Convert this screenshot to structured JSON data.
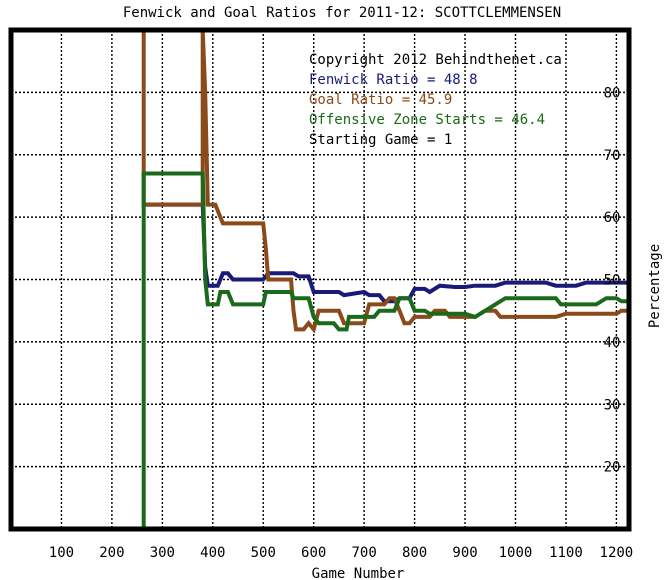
{
  "chart_data": {
    "type": "line",
    "title": "Fenwick and Goal Ratios for 2011-12: SCOTTCLEMMENSEN",
    "xlabel": "Game Number",
    "ylabel": "Percentage",
    "xlim": [
      0,
      1225
    ],
    "ylim": [
      10,
      90
    ],
    "x_ticks": [
      100,
      200,
      300,
      400,
      500,
      600,
      700,
      800,
      900,
      1000,
      1100,
      1200
    ],
    "y_ticks": [
      20,
      30,
      40,
      50,
      60,
      70,
      80
    ],
    "grid": true,
    "y_axis_side": "right",
    "annotations": [
      {
        "text": "Copyright 2012 Behindthenet.ca",
        "color": "#000000"
      },
      {
        "text": "Fenwick Ratio = 48.8",
        "color": "#1a1a7a"
      },
      {
        "text": "Goal Ratio = 45.9",
        "color": "#8b4a1a"
      },
      {
        "text": "Offensive Zone Starts = 46.4",
        "color": "#1a6a1a"
      },
      {
        "text": "Starting Game = 1",
        "color": "#000000"
      }
    ],
    "series": [
      {
        "name": "Fenwick Ratio",
        "color": "#1a1a7a",
        "points": [
          [
            263,
            62
          ],
          [
            380,
            62
          ],
          [
            385,
            52
          ],
          [
            390,
            49
          ],
          [
            405,
            49
          ],
          [
            410,
            49
          ],
          [
            420,
            51
          ],
          [
            430,
            51
          ],
          [
            440,
            50
          ],
          [
            500,
            50
          ],
          [
            510,
            51
          ],
          [
            560,
            51
          ],
          [
            570,
            50.5
          ],
          [
            590,
            50.5
          ],
          [
            600,
            48
          ],
          [
            650,
            48
          ],
          [
            660,
            47.5
          ],
          [
            700,
            48
          ],
          [
            710,
            47.5
          ],
          [
            730,
            47.5
          ],
          [
            740,
            46.5
          ],
          [
            760,
            46.5
          ],
          [
            770,
            47
          ],
          [
            790,
            47
          ],
          [
            800,
            48.5
          ],
          [
            820,
            48.5
          ],
          [
            830,
            48
          ],
          [
            850,
            49
          ],
          [
            880,
            48.8
          ],
          [
            900,
            48.8
          ],
          [
            920,
            49
          ],
          [
            960,
            49
          ],
          [
            980,
            49.5
          ],
          [
            1060,
            49.5
          ],
          [
            1080,
            49
          ],
          [
            1120,
            49
          ],
          [
            1140,
            49.5
          ],
          [
            1225,
            49.5
          ]
        ]
      },
      {
        "name": "Goal Ratio",
        "color": "#8b4a1a",
        "points": [
          [
            263,
            100
          ],
          [
            263,
            90
          ],
          [
            263,
            62
          ],
          [
            380,
            62
          ],
          [
            380,
            90
          ],
          [
            385,
            80
          ],
          [
            390,
            62
          ],
          [
            405,
            62
          ],
          [
            410,
            61
          ],
          [
            420,
            59
          ],
          [
            500,
            59
          ],
          [
            505,
            55
          ],
          [
            510,
            50
          ],
          [
            555,
            50
          ],
          [
            560,
            45
          ],
          [
            565,
            42
          ],
          [
            580,
            42
          ],
          [
            590,
            43
          ],
          [
            600,
            42
          ],
          [
            610,
            45
          ],
          [
            650,
            45
          ],
          [
            660,
            43
          ],
          [
            700,
            43
          ],
          [
            710,
            46
          ],
          [
            740,
            46
          ],
          [
            750,
            47
          ],
          [
            760,
            47
          ],
          [
            770,
            45
          ],
          [
            780,
            43
          ],
          [
            790,
            43
          ],
          [
            800,
            44
          ],
          [
            830,
            44
          ],
          [
            840,
            45
          ],
          [
            860,
            45
          ],
          [
            870,
            44
          ],
          [
            920,
            44
          ],
          [
            940,
            45
          ],
          [
            960,
            45
          ],
          [
            970,
            44
          ],
          [
            1080,
            44
          ],
          [
            1100,
            44.5
          ],
          [
            1200,
            44.5
          ],
          [
            1210,
            45
          ],
          [
            1225,
            45
          ]
        ]
      },
      {
        "name": "Offensive Zone Starts",
        "color": "#1a6a1a",
        "points": [
          [
            263,
            0
          ],
          [
            263,
            67
          ],
          [
            380,
            67
          ],
          [
            385,
            50
          ],
          [
            390,
            46
          ],
          [
            410,
            46
          ],
          [
            415,
            48
          ],
          [
            430,
            48
          ],
          [
            440,
            46
          ],
          [
            500,
            46
          ],
          [
            505,
            48
          ],
          [
            555,
            48
          ],
          [
            560,
            47
          ],
          [
            590,
            47
          ],
          [
            600,
            44
          ],
          [
            610,
            43
          ],
          [
            640,
            43
          ],
          [
            650,
            42
          ],
          [
            665,
            42
          ],
          [
            670,
            44
          ],
          [
            720,
            44
          ],
          [
            730,
            45
          ],
          [
            760,
            45
          ],
          [
            770,
            47
          ],
          [
            790,
            47
          ],
          [
            800,
            45
          ],
          [
            820,
            45
          ],
          [
            830,
            44.5
          ],
          [
            900,
            44.5
          ],
          [
            920,
            44
          ],
          [
            940,
            45
          ],
          [
            960,
            46
          ],
          [
            980,
            47
          ],
          [
            1080,
            47
          ],
          [
            1090,
            46
          ],
          [
            1160,
            46
          ],
          [
            1180,
            47
          ],
          [
            1200,
            47
          ],
          [
            1210,
            46.5
          ],
          [
            1225,
            46.5
          ]
        ]
      }
    ]
  }
}
